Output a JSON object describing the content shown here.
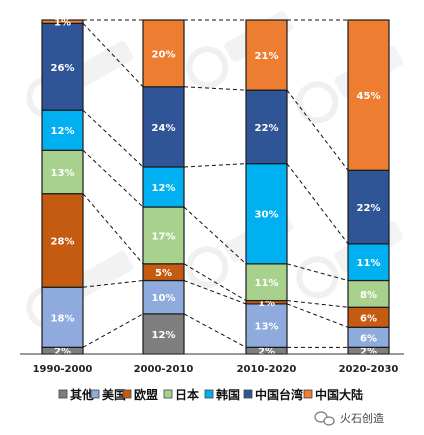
{
  "chart_data": {
    "type": "bar",
    "stacked": true,
    "percent": true,
    "categories": [
      "1990-2000",
      "2000-2010",
      "2010-2020",
      "2020-2030"
    ],
    "series": [
      {
        "name": "其他",
        "color": "#7f7f7f",
        "values": [
          2,
          12,
          2,
          2
        ],
        "labels": [
          "2%",
          "12%",
          "2%",
          "2%"
        ]
      },
      {
        "name": "美国",
        "color": "#8faadc",
        "values": [
          18,
          10,
          13,
          6
        ],
        "labels": [
          "18%",
          "10%",
          "13%",
          "6%"
        ]
      },
      {
        "name": "欧盟",
        "color": "#c55a11",
        "values": [
          28,
          5,
          1,
          6
        ],
        "labels": [
          "28%",
          "5%",
          "1%",
          "6%"
        ]
      },
      {
        "name": "日本",
        "color": "#a9d18e",
        "values": [
          13,
          17,
          11,
          8
        ],
        "labels": [
          "13%",
          "17%",
          "11%",
          "8%"
        ]
      },
      {
        "name": "韩国",
        "color": "#00b0f0",
        "values": [
          12,
          12,
          30,
          11
        ],
        "labels": [
          "12%",
          "12%",
          "30%",
          "11%"
        ]
      },
      {
        "name": "中国台湾",
        "color": "#2f5597",
        "values": [
          26,
          24,
          22,
          22
        ],
        "labels": [
          "26%",
          "24%",
          "22%",
          "22%"
        ]
      },
      {
        "name": "中国大陆",
        "color": "#ed7d31",
        "values": [
          1,
          20,
          21,
          45
        ],
        "labels": [
          "1%",
          "20%",
          "21%",
          "45%"
        ]
      }
    ],
    "ylim": [
      0,
      100
    ],
    "connector_lines": "dashed",
    "legend_position": "bottom"
  },
  "watermark": {
    "text": "火石创造",
    "icon": "wechat-icon"
  }
}
